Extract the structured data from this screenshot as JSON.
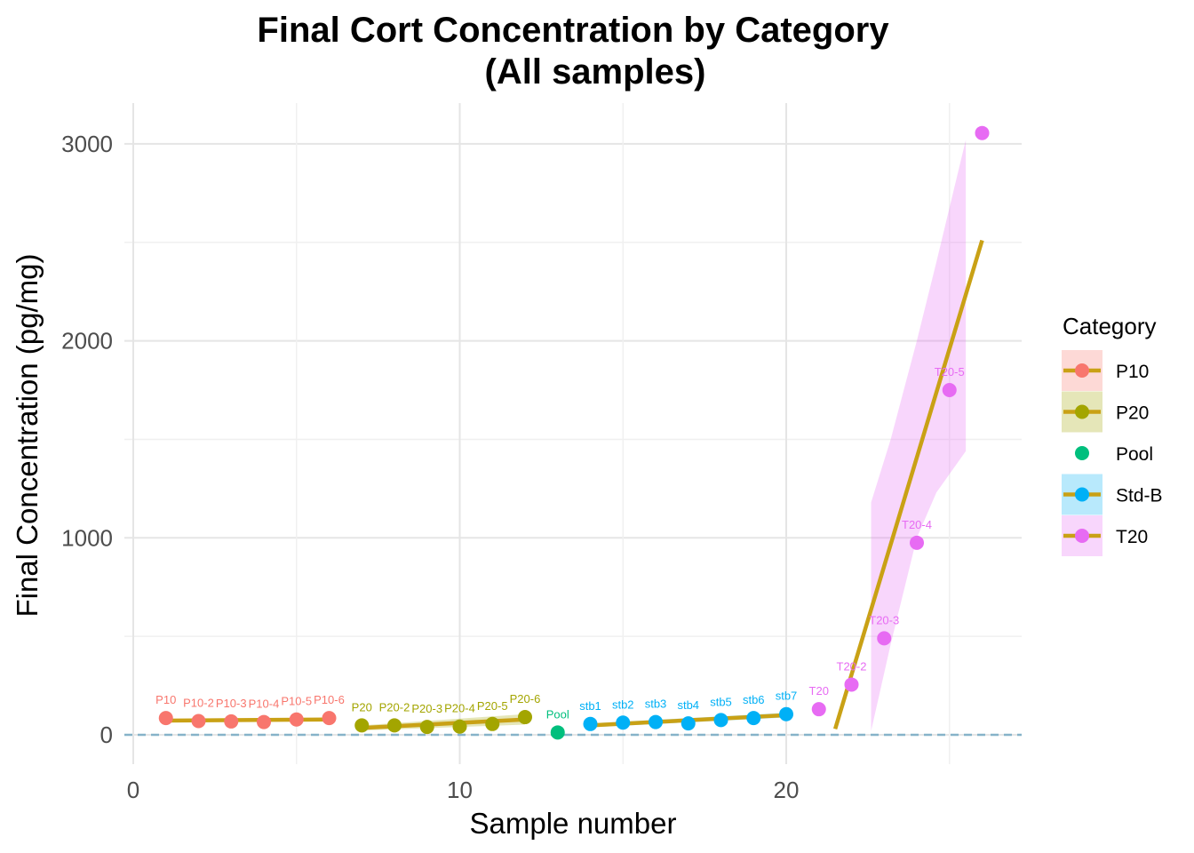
{
  "chart_data": {
    "type": "scatter",
    "title": [
      "Final Cort Concentration by Category",
      "(All samples)"
    ],
    "xlabel": "Sample number",
    "ylabel": "Final Concentration (pg/mg)",
    "xlim": [
      -0.4,
      27
    ],
    "ylim": [
      -150,
      3200
    ],
    "x_ticks": [
      0,
      10,
      20
    ],
    "y_ticks": [
      0,
      1000,
      2000,
      3000
    ],
    "grid": true,
    "reference_line": {
      "y": 0,
      "style": "dashed",
      "color": "#86b3c9"
    },
    "legend": {
      "title": "Category",
      "placement": "right",
      "entries": [
        {
          "name": "P10",
          "color": "#F8766D",
          "trend": true
        },
        {
          "name": "P20",
          "color": "#A3A500",
          "trend": true
        },
        {
          "name": "Pool",
          "color": "#00BF7D",
          "trend": false
        },
        {
          "name": "Std-B",
          "color": "#00B0F6",
          "trend": true
        },
        {
          "name": "T20",
          "color": "#E76BF3",
          "trend": true
        }
      ]
    },
    "trend_color": "#C9A115",
    "series": [
      {
        "name": "P10",
        "color": "#F8766D",
        "band_color": "#F8766D",
        "points": [
          {
            "x": 1,
            "y": 85,
            "label": "P10"
          },
          {
            "x": 2,
            "y": 70,
            "label": "P10-2"
          },
          {
            "x": 3,
            "y": 68,
            "label": "P10-3"
          },
          {
            "x": 4,
            "y": 65,
            "label": "P10-4"
          },
          {
            "x": 5,
            "y": 78,
            "label": "P10-5"
          },
          {
            "x": 6,
            "y": 85,
            "label": "P10-6"
          }
        ],
        "trend": {
          "x": [
            1,
            6
          ],
          "y": [
            72,
            78
          ]
        },
        "band": {
          "x": [
            1,
            6
          ],
          "upper": [
            80,
            86
          ],
          "lower": [
            64,
            70
          ]
        }
      },
      {
        "name": "P20",
        "color": "#A3A500",
        "band_color": "#A3A500",
        "points": [
          {
            "x": 7,
            "y": 48,
            "label": "P20"
          },
          {
            "x": 8,
            "y": 48,
            "label": "P20-2"
          },
          {
            "x": 9,
            "y": 40,
            "label": "P20-3"
          },
          {
            "x": 10,
            "y": 42,
            "label": "P20-4"
          },
          {
            "x": 11,
            "y": 55,
            "label": "P20-5"
          },
          {
            "x": 12,
            "y": 90,
            "label": "P20-6"
          }
        ],
        "trend": {
          "x": [
            7,
            12
          ],
          "y": [
            35,
            78
          ]
        },
        "band": {
          "x": [
            7,
            12
          ],
          "upper": [
            48,
            105
          ],
          "lower": [
            22,
            52
          ]
        }
      },
      {
        "name": "Pool",
        "color": "#00BF7D",
        "points": [
          {
            "x": 13,
            "y": 12,
            "label": "Pool"
          }
        ]
      },
      {
        "name": "Std-B",
        "color": "#00B0F6",
        "band_color": "#00B0F6",
        "points": [
          {
            "x": 14,
            "y": 55,
            "label": "stb1"
          },
          {
            "x": 15,
            "y": 62,
            "label": "stb2"
          },
          {
            "x": 16,
            "y": 65,
            "label": "stb3"
          },
          {
            "x": 17,
            "y": 58,
            "label": "stb4"
          },
          {
            "x": 18,
            "y": 75,
            "label": "stb5"
          },
          {
            "x": 19,
            "y": 85,
            "label": "stb6"
          },
          {
            "x": 20,
            "y": 105,
            "label": "stb7"
          }
        ],
        "trend": {
          "x": [
            14,
            20
          ],
          "y": [
            48,
            100
          ]
        },
        "band": {
          "x": [
            14,
            20
          ],
          "upper": [
            58,
            112
          ],
          "lower": [
            38,
            88
          ]
        }
      },
      {
        "name": "T20",
        "color": "#E76BF3",
        "band_color": "#E76BF3",
        "points": [
          {
            "x": 21,
            "y": 130,
            "label": "T20"
          },
          {
            "x": 22,
            "y": 255,
            "label": "T20-2"
          },
          {
            "x": 23,
            "y": 490,
            "label": "T20-3"
          },
          {
            "x": 24,
            "y": 975,
            "label": "T20-4"
          },
          {
            "x": 25,
            "y": 1750,
            "label": "T20-5"
          },
          {
            "x": 26,
            "y": 3055,
            "label": ""
          }
        ],
        "trend": {
          "x": [
            21.5,
            26
          ],
          "y": [
            30,
            2510
          ]
        },
        "band": {
          "x": [
            22.6,
            23.2,
            24,
            24.6,
            25.5
          ],
          "upper": [
            1180,
            1500,
            2000,
            2400,
            3020
          ],
          "lower": [
            20,
            460,
            1000,
            1230,
            1440
          ]
        }
      }
    ]
  }
}
